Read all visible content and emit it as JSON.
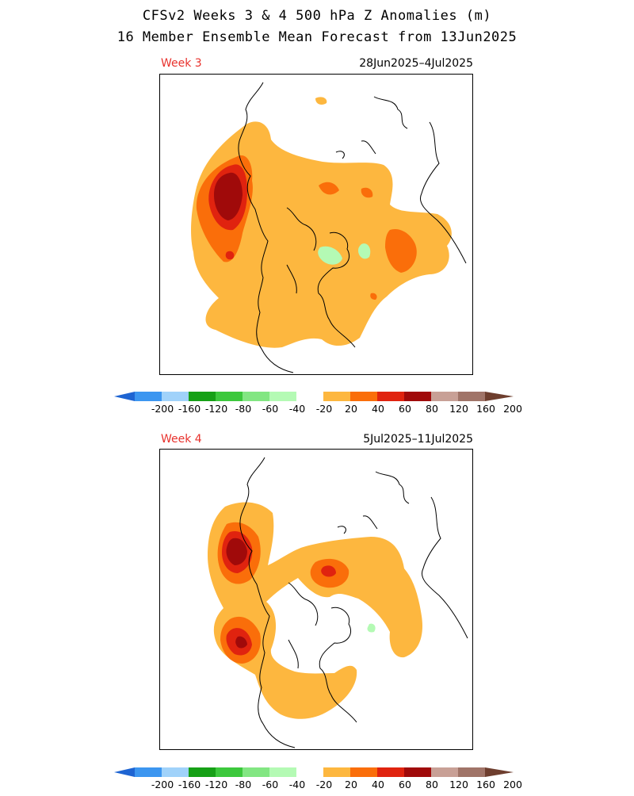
{
  "header": {
    "line1": "CFSv2 Weeks 3 & 4 500 hPa Z Anomalies (m)",
    "line2": "16 Member Ensemble Mean Forecast from 13Jun2025"
  },
  "panels": [
    {
      "week_label": "Week 3",
      "date_range": "28Jun2025–4Jul2025"
    },
    {
      "week_label": "Week 4",
      "date_range": "5Jul2025–11Jul2025"
    }
  ],
  "colorbar": {
    "ticks": [
      "-200",
      "-160",
      "-120",
      "-80",
      "-60",
      "-40",
      "-20",
      "20",
      "40",
      "60",
      "80",
      "120",
      "160",
      "200"
    ],
    "colors": {
      "lt200": "#1e64d2",
      "m200_m160": "#3c96f0",
      "m160_m120": "#a0d2fa",
      "m120_m80": "#16a016",
      "m80_m60": "#3cc83c",
      "m60_m40": "#82e682",
      "m40_m20": "#b4fab4",
      "m20_20": "#ffffff",
      "p20_40": "#fdb73f",
      "p40_60": "#fa6e0a",
      "p60_80": "#e0230f",
      "p80_120": "#a00a0a",
      "p120_160": "#c8a096",
      "p160_200": "#a07468",
      "gt200": "#6e3e2e"
    }
  }
}
